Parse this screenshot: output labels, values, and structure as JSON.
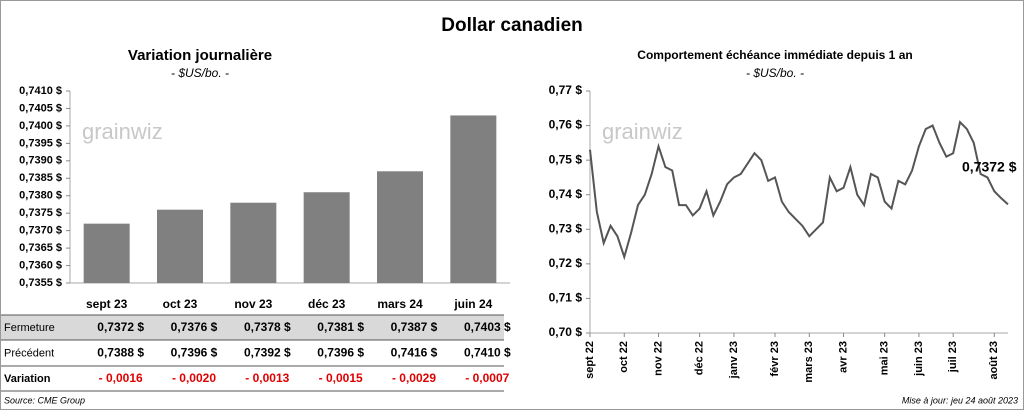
{
  "title": "Dollar canadien",
  "watermark": "grainwiz",
  "source": "Source: CME Group",
  "updated": "Mise à jour: jeu 24 août 2023",
  "chart_data": [
    {
      "type": "bar",
      "title": "Variation  journalière",
      "subtitle": "- $US/bo. -",
      "categories": [
        "sept 23",
        "oct 23",
        "nov 23",
        "déc 23",
        "mars 24",
        "juin 24"
      ],
      "values": [
        0.7372,
        0.7376,
        0.7378,
        0.7381,
        0.7387,
        0.7403
      ],
      "value_labels": [
        "0,7372 $",
        "0,7376 $",
        "0,7378 $",
        "0,7381 $",
        "0,7387 $",
        "0,7403 $"
      ],
      "color": "#808080",
      "ylim": [
        0.7355,
        0.741
      ],
      "yticks": [
        {
          "value": 0.7355,
          "label": "0,7355 $"
        },
        {
          "value": 0.736,
          "label": "0,7360 $"
        },
        {
          "value": 0.7365,
          "label": "0,7365 $"
        },
        {
          "value": 0.737,
          "label": "0,7370 $"
        },
        {
          "value": 0.7375,
          "label": "0,7375 $"
        },
        {
          "value": 0.738,
          "label": "0,7380 $"
        },
        {
          "value": 0.7385,
          "label": "0,7385 $"
        },
        {
          "value": 0.739,
          "label": "0,7390 $"
        },
        {
          "value": 0.7395,
          "label": "0,7395 $"
        },
        {
          "value": 0.74,
          "label": "0,7400 $"
        },
        {
          "value": 0.7405,
          "label": "0,7405 $"
        },
        {
          "value": 0.741,
          "label": "0,7410 $"
        }
      ],
      "grid": false
    },
    {
      "type": "line",
      "title": "Comportement échéance immédiate depuis 1 an",
      "subtitle": "- $US/bo. -",
      "categories": [
        "sept 22",
        null,
        null,
        null,
        null,
        "oct 22",
        null,
        null,
        null,
        null,
        "nov 22",
        null,
        null,
        null,
        null,
        null,
        "déc 22",
        null,
        null,
        null,
        null,
        "janv 23",
        null,
        null,
        null,
        null,
        null,
        "févr 23",
        null,
        null,
        null,
        null,
        "mars 23",
        null,
        null,
        null,
        null,
        "avr 23",
        null,
        null,
        null,
        null,
        null,
        "mai 23",
        null,
        null,
        null,
        null,
        "juin 23",
        null,
        null,
        null,
        null,
        "juil 23",
        null,
        null,
        null,
        null,
        null,
        "août 23",
        null,
        null
      ],
      "values": [
        0.753,
        0.735,
        0.726,
        0.731,
        0.728,
        0.722,
        0.729,
        0.737,
        0.74,
        0.746,
        0.754,
        0.748,
        0.747,
        0.737,
        0.737,
        0.734,
        0.736,
        0.741,
        0.734,
        0.738,
        0.743,
        0.745,
        0.746,
        0.749,
        0.752,
        0.75,
        0.744,
        0.745,
        0.738,
        0.735,
        0.733,
        0.731,
        0.728,
        0.73,
        0.732,
        0.745,
        0.741,
        0.742,
        0.748,
        0.74,
        0.737,
        0.746,
        0.745,
        0.738,
        0.736,
        0.744,
        0.743,
        0.747,
        0.754,
        0.759,
        0.76,
        0.755,
        0.751,
        0.752,
        0.761,
        0.759,
        0.755,
        0.746,
        0.745,
        0.741,
        0.739,
        0.7372
      ],
      "annotation": "0,7372 $",
      "color": "#555555",
      "ylim": [
        0.7,
        0.77
      ],
      "yticks": [
        {
          "value": 0.7,
          "label": "0,70 $"
        },
        {
          "value": 0.71,
          "label": "0,71 $"
        },
        {
          "value": 0.72,
          "label": "0,72 $"
        },
        {
          "value": 0.73,
          "label": "0,73 $"
        },
        {
          "value": 0.74,
          "label": "0,74 $"
        },
        {
          "value": 0.75,
          "label": "0,75 $"
        },
        {
          "value": 0.76,
          "label": "0,76 $"
        },
        {
          "value": 0.77,
          "label": "0,77 $"
        }
      ],
      "grid": false
    }
  ],
  "table": {
    "row_labels": [
      "Fermeture",
      "Précédent",
      "Variation"
    ],
    "previous": [
      "0,7388 $",
      "0,7396 $",
      "0,7392 $",
      "0,7396 $",
      "0,7416 $",
      "0,7410 $"
    ],
    "variation": [
      "- 0,0016",
      "- 0,0020",
      "- 0,0013",
      "- 0,0015",
      "- 0,0029",
      "- 0,0007"
    ]
  }
}
